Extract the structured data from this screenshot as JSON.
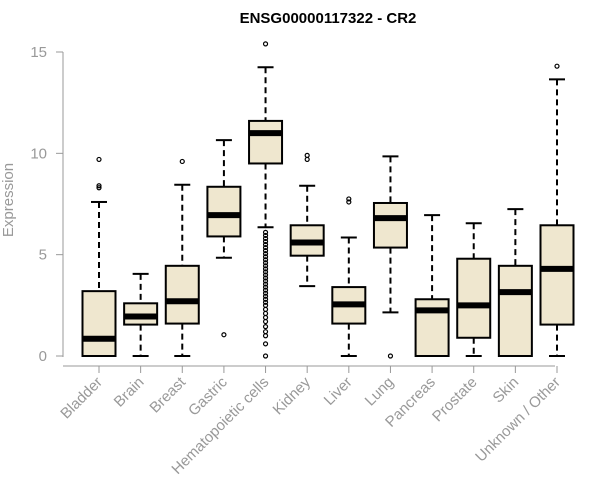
{
  "chart_data": {
    "type": "boxplot",
    "title": "ENSG00000117322 - CR2",
    "xlabel": "",
    "ylabel": "Expression",
    "ylim": [
      0,
      15
    ],
    "yticks": [
      0,
      5,
      10,
      15
    ],
    "colors": {
      "box_fill": "#efe7cf",
      "axis": "#999999",
      "ink": "#000000"
    },
    "categories": [
      "Bladder",
      "Brain",
      "Breast",
      "Gastric",
      "Hematopoietic cells",
      "Kidney",
      "Liver",
      "Lung",
      "Pancreas",
      "Prostate",
      "Skin",
      "Unknown / Other"
    ],
    "boxes": [
      {
        "category": "Bladder",
        "min": 0,
        "q1": 0,
        "median": 0.85,
        "q3": 3.2,
        "max": 7.6,
        "outliers": [
          8.3,
          8.4,
          9.7
        ]
      },
      {
        "category": "Brain",
        "min": 0,
        "q1": 1.55,
        "median": 1.95,
        "q3": 2.6,
        "max": 4.05,
        "outliers": []
      },
      {
        "category": "Breast",
        "min": 0,
        "q1": 1.6,
        "median": 2.7,
        "q3": 4.45,
        "max": 8.45,
        "outliers": [
          9.6
        ]
      },
      {
        "category": "Gastric",
        "min": 4.85,
        "q1": 5.9,
        "median": 6.95,
        "q3": 8.35,
        "max": 10.65,
        "outliers": [
          1.05
        ]
      },
      {
        "category": "Hematopoietic cells",
        "min": 6.35,
        "q1": 9.5,
        "median": 11.0,
        "q3": 11.6,
        "max": 14.25,
        "outliers": [
          15.4,
          0.0,
          0.6,
          1.0,
          1.2,
          1.45,
          1.7,
          1.9,
          2.1,
          2.3,
          2.5,
          2.65,
          2.8,
          2.95,
          3.1,
          3.25,
          3.4,
          3.55,
          3.7,
          3.85,
          4.0,
          4.15,
          4.3,
          4.45,
          4.6,
          4.75,
          4.9,
          5.05,
          5.2,
          5.35,
          5.5,
          5.65,
          5.8,
          5.95,
          6.1
        ]
      },
      {
        "category": "Kidney",
        "min": 3.45,
        "q1": 4.95,
        "median": 5.6,
        "q3": 6.45,
        "max": 8.4,
        "outliers": [
          9.7,
          9.9
        ]
      },
      {
        "category": "Liver",
        "min": 0,
        "q1": 1.6,
        "median": 2.55,
        "q3": 3.4,
        "max": 5.85,
        "outliers": [
          7.6,
          7.75
        ]
      },
      {
        "category": "Lung",
        "min": 2.15,
        "q1": 5.35,
        "median": 6.8,
        "q3": 7.55,
        "max": 9.85,
        "outliers": [
          0.0
        ]
      },
      {
        "category": "Pancreas",
        "min": 0,
        "q1": 0,
        "median": 2.25,
        "q3": 2.8,
        "max": 6.95,
        "outliers": []
      },
      {
        "category": "Prostate",
        "min": 0,
        "q1": 0.9,
        "median": 2.5,
        "q3": 4.8,
        "max": 6.55,
        "outliers": []
      },
      {
        "category": "Skin",
        "min": 0,
        "q1": 0,
        "median": 3.15,
        "q3": 4.45,
        "max": 7.25,
        "outliers": []
      },
      {
        "category": "Unknown / Other",
        "min": 0,
        "q1": 1.55,
        "median": 4.3,
        "q3": 6.45,
        "max": 13.65,
        "outliers": [
          14.3
        ]
      }
    ]
  }
}
